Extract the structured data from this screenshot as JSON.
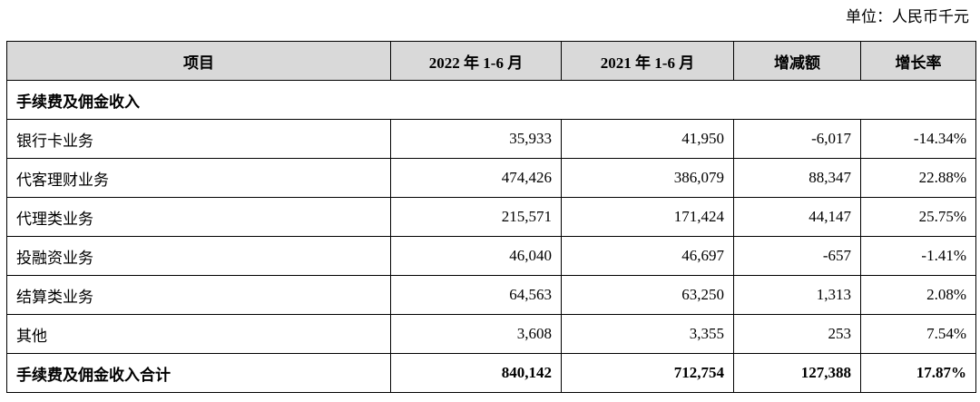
{
  "header": {
    "unit": "单位：人民币千元"
  },
  "table": {
    "columns": [
      "项目",
      "2022 年 1-6 月",
      "2021 年 1-6 月",
      "增减额",
      "增长率"
    ],
    "section": "手续费及佣金收入",
    "rows": [
      [
        "银行卡业务",
        "35,933",
        "41,950",
        "-6,017",
        "-14.34%"
      ],
      [
        "代客理财业务",
        "474,426",
        "386,079",
        "88,347",
        "22.88%"
      ],
      [
        "代理类业务",
        "215,571",
        "171,424",
        "44,147",
        "25.75%"
      ],
      [
        "投融资业务",
        "46,040",
        "46,697",
        "-657",
        "-1.41%"
      ],
      [
        "结算类业务",
        "64,563",
        "63,250",
        "1,313",
        "2.08%"
      ],
      [
        "其他",
        "3,608",
        "3,355",
        "253",
        "7.54%"
      ]
    ],
    "total": [
      "手续费及佣金收入合计",
      "840,142",
      "712,754",
      "127,388",
      "17.87%"
    ]
  }
}
